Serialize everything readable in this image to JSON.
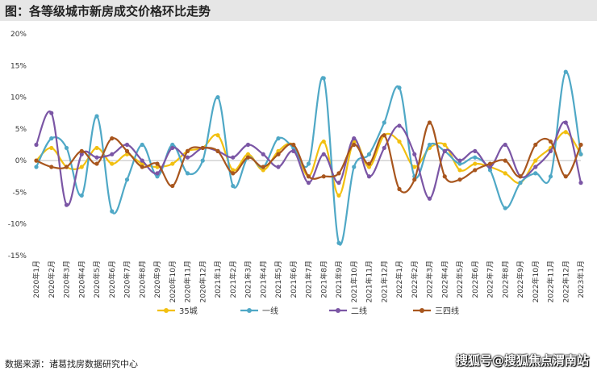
{
  "header": {
    "title": "图：各等级城市新房成交价格环比走势"
  },
  "footer": {
    "source": "数据来源：诸葛找房数据研究中心",
    "watermark": "搜狐号@搜狐焦点渭南站"
  },
  "colors": {
    "35城": "#f2c010",
    "一线": "#4fa8c6",
    "二线": "#7b56a5",
    "三四线": "#a8561e"
  },
  "chart_data": {
    "type": "line",
    "title": "图：各等级城市新房成交价格环比走势",
    "xlabel": "",
    "ylabel": "",
    "ylim": [
      -15,
      20
    ],
    "yticks": [
      -15,
      -10,
      -5,
      0,
      5,
      10,
      15,
      20
    ],
    "ytick_labels": [
      "-15%",
      "-10%",
      "-5%",
      "0%",
      "5%",
      "10%",
      "15%",
      "20%"
    ],
    "grid": false,
    "legend": "bottom",
    "categories": [
      "2020年1月",
      "2020年2月",
      "2020年3月",
      "2020年4月",
      "2020年5月",
      "2020年6月",
      "2020年7月",
      "2020年8月",
      "2020年9月",
      "2020年10月",
      "2020年11月",
      "2020年12月",
      "2021年1月",
      "2021年2月",
      "2021年3月",
      "2021年4月",
      "2021年5月",
      "2021年6月",
      "2021年7月",
      "2021年8月",
      "2021年9月",
      "2021年10月",
      "2021年11月",
      "2021年12月",
      "2022年1月",
      "2022年2月",
      "2022年3月",
      "2022年4月",
      "2022年5月",
      "2022年6月",
      "2022年7月",
      "2022年8月",
      "2022年9月",
      "2022年10月",
      "2022年11月",
      "2022年12月",
      "2023年1月"
    ],
    "series": [
      {
        "name": "35城",
        "values": [
          0,
          2,
          -1,
          -1,
          2,
          -0.5,
          1,
          -0.5,
          -1,
          -0.5,
          1.5,
          2,
          4,
          -1.5,
          1,
          -1.5,
          1.5,
          2.5,
          -2.5,
          3,
          -5.5,
          3,
          -1,
          4,
          3,
          -1,
          2,
          2.5,
          -1.5,
          -0.5,
          -1,
          -2,
          -3.5,
          0,
          2,
          4.5,
          1
        ]
      },
      {
        "name": "一线",
        "values": [
          -1,
          3.5,
          2,
          -5.5,
          7,
          -8,
          -3,
          2.5,
          -2.5,
          2.5,
          -2,
          0,
          10,
          -4,
          0.5,
          -1,
          3.5,
          2,
          -0.5,
          13,
          -13,
          -1,
          1,
          6,
          11.5,
          -2.5,
          2.5,
          1.5,
          -0.5,
          0.5,
          -1.5,
          -7.5,
          -3.5,
          -2,
          -2.5,
          14,
          1
        ]
      },
      {
        "name": "二线",
        "values": [
          2.5,
          7.5,
          -7,
          1,
          0.5,
          1,
          2.5,
          0,
          -2,
          2,
          0.5,
          2,
          1.5,
          0.5,
          2.5,
          1,
          -1,
          1.5,
          -3.5,
          1,
          -3.5,
          3.5,
          -2.5,
          2,
          5.5,
          1,
          -6,
          1.5,
          0,
          1.5,
          -1,
          2.5,
          -2.5,
          -1,
          1.5,
          6,
          -3.5
        ]
      },
      {
        "name": "三四线",
        "values": [
          0,
          -1,
          -1,
          1.5,
          -0.5,
          3.5,
          1.5,
          -1,
          -0.5,
          -4,
          1.5,
          2,
          1.5,
          -2,
          0.5,
          -1,
          1,
          2.5,
          -2.5,
          -2.5,
          -2,
          2.5,
          -0.5,
          4,
          -4.5,
          -3,
          6,
          -2.5,
          -3,
          -1.5,
          -0.5,
          0,
          -2.5,
          2.5,
          3,
          -2.5,
          2.5
        ]
      }
    ]
  }
}
